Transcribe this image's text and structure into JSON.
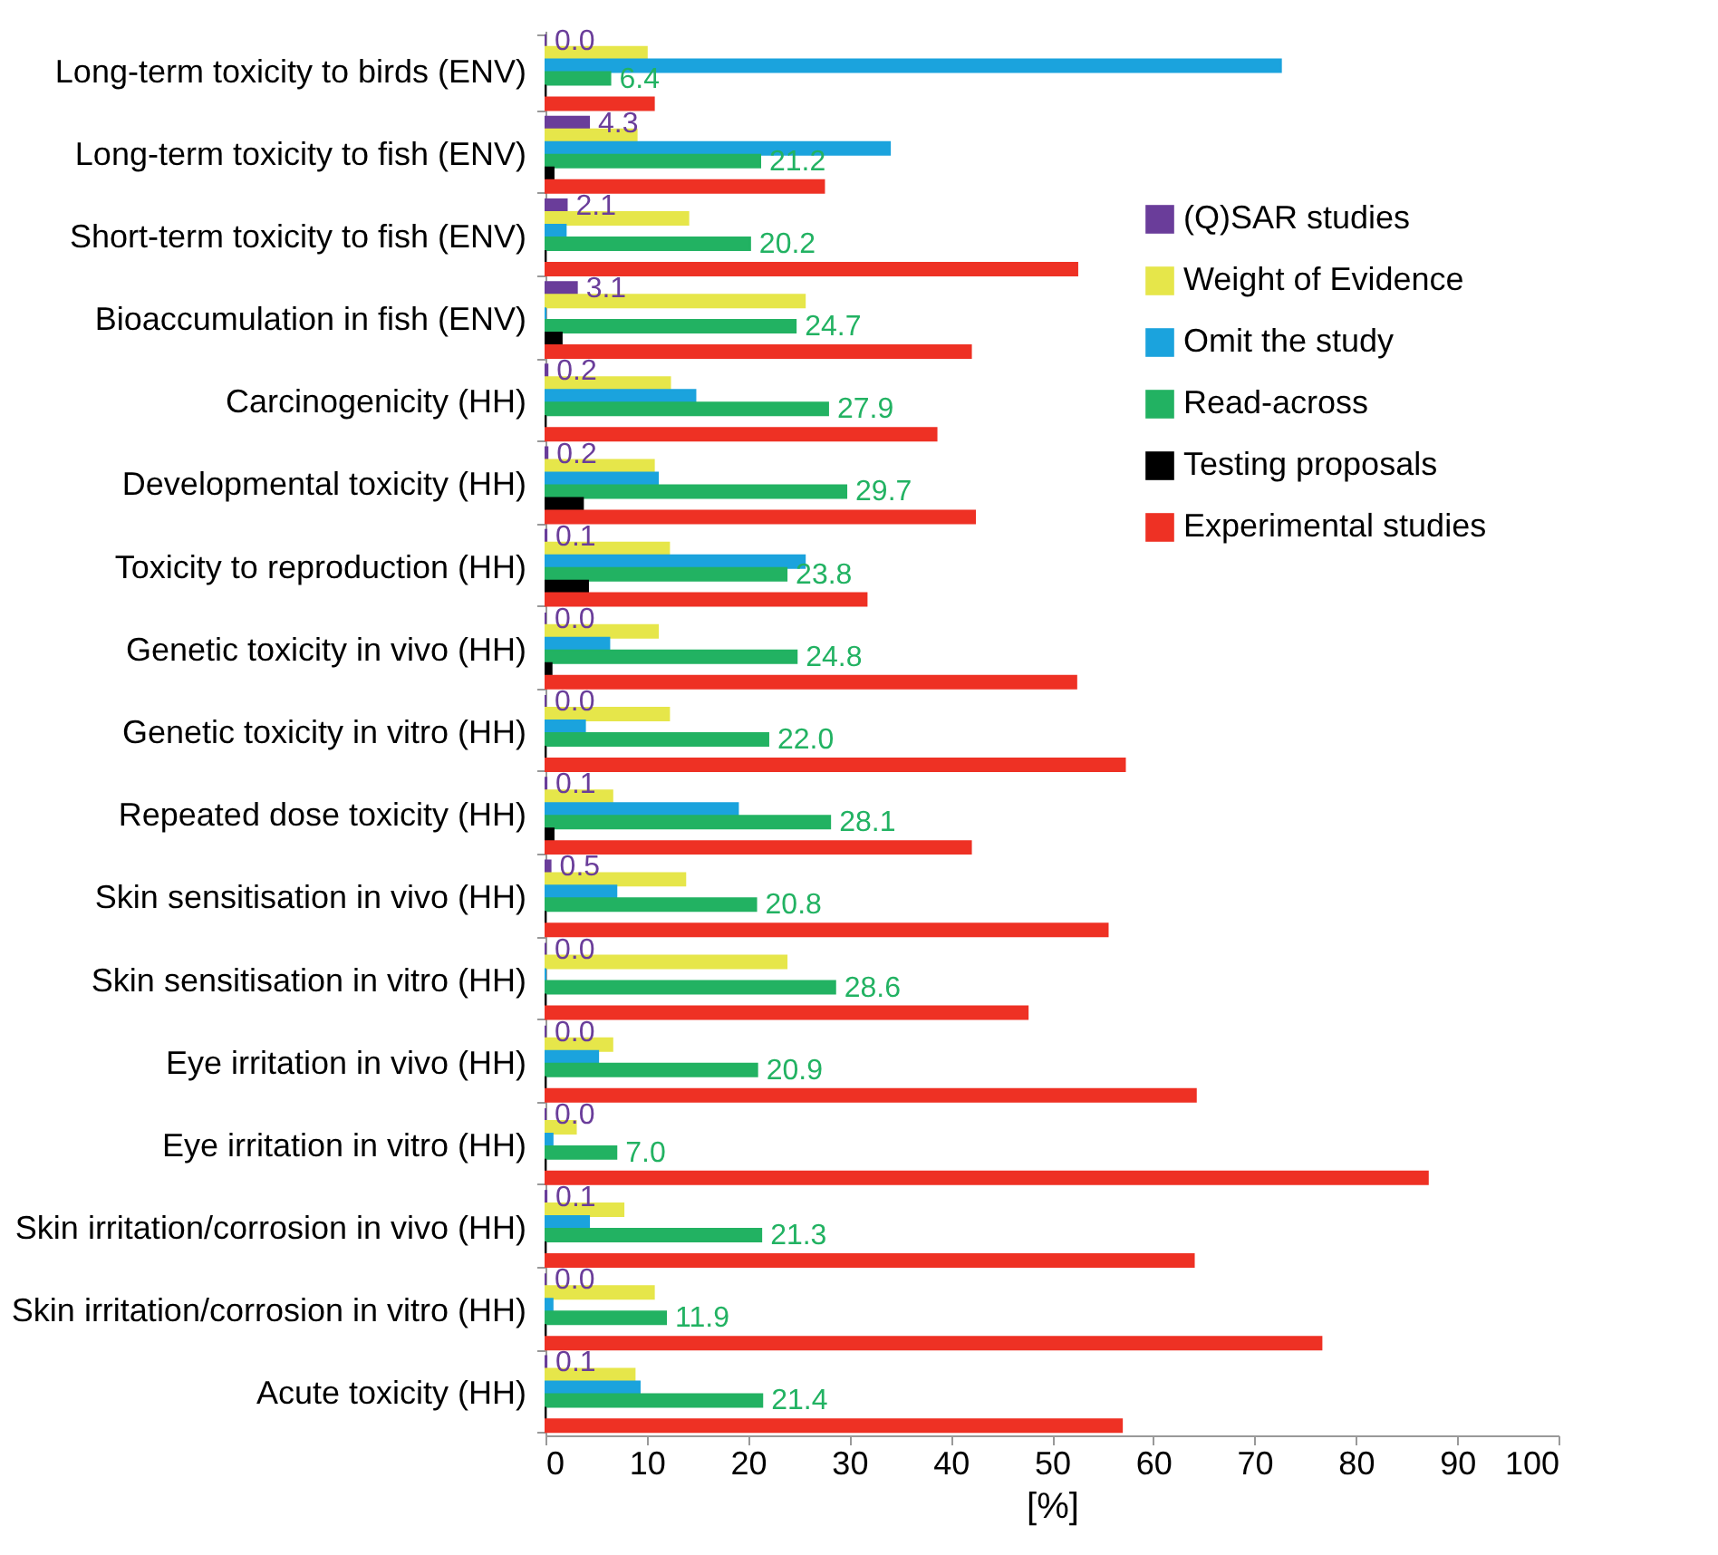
{
  "chart_data": {
    "type": "bar",
    "orientation": "horizontal",
    "xlabel": "[%]",
    "categories": [
      "Long-term toxicity to birds (ENV)",
      "Long-term toxicity to fish (ENV)",
      "Short-term toxicity to fish (ENV)",
      "Bioaccumulation in fish (ENV)",
      "Carcinogenicity (HH)",
      "Developmental toxicity (HH)",
      "Toxicity to reproduction (HH)",
      "Genetic toxicity in vivo (HH)",
      "Genetic toxicity in vitro (HH)",
      "Repeated dose toxicity (HH)",
      "Skin sensitisation in vivo (HH)",
      "Skin sensitisation in vitro (HH)",
      "Eye irritation in vivo (HH)",
      "Eye irritation in vitro (HH)",
      "Skin irritation/corrosion in vivo (HH)",
      "Skin irritation/corrosion in vitro (HH)",
      "Acute toxicity (HH)"
    ],
    "series": [
      {
        "name": "(Q)SAR studies",
        "color": "#6a3d9a",
        "values": [
          0.0,
          4.3,
          2.1,
          3.1,
          0.2,
          0.2,
          0.1,
          0.0,
          0.0,
          0.1,
          0.5,
          0.0,
          0.0,
          0.0,
          0.1,
          0.0,
          0.1
        ],
        "value_labels": [
          "0.0",
          "4.3",
          "2.1",
          "3.1",
          "0.2",
          "0.2",
          "0.1",
          "0.0",
          "0.0",
          "0.1",
          "0.5",
          "0.0",
          "0.0",
          "0.0",
          "0.1",
          "0.0",
          "0.1"
        ]
      },
      {
        "name": "Weight of Evidence",
        "color": "#e6e64a",
        "values": [
          10.0,
          9.0,
          14.1,
          25.6,
          12.3,
          10.7,
          12.2,
          11.1,
          12.2,
          6.6,
          13.8,
          23.8,
          6.6,
          3.0,
          7.7,
          10.7,
          8.8
        ]
      },
      {
        "name": "Omit the study",
        "color": "#1ba3dd",
        "values": [
          72.6,
          34.0,
          2.0,
          0,
          14.8,
          11.1,
          25.6,
          6.3,
          3.9,
          19.0,
          7.0,
          0,
          5.2,
          0.7,
          4.3,
          0.7,
          9.3
        ]
      },
      {
        "name": "Read-across",
        "color": "#22b262",
        "values": [
          6.4,
          21.2,
          20.2,
          24.7,
          27.9,
          29.7,
          23.8,
          24.8,
          22.0,
          28.1,
          20.8,
          28.6,
          20.9,
          7.0,
          21.3,
          11.9,
          21.4
        ],
        "value_labels": [
          "6.4",
          "21.2",
          "20.2",
          "24.7",
          "27.9",
          "29.7",
          "23.8",
          "24.8",
          "22.0",
          "28.1",
          "20.8",
          "28.6",
          "20.9",
          "7.0",
          "21.3",
          "11.9",
          "21.4"
        ]
      },
      {
        "name": "Testing proposals",
        "color": "#000000",
        "values": [
          0,
          0.8,
          0,
          1.6,
          0,
          3.7,
          4.2,
          0.6,
          0,
          0.8,
          0,
          0,
          0,
          0,
          0,
          0,
          0
        ]
      },
      {
        "name": "Experimental studies",
        "color": "#ee3124",
        "values": [
          10.7,
          27.5,
          52.5,
          42.0,
          38.6,
          42.4,
          31.7,
          52.4,
          57.2,
          42.0,
          55.5,
          47.6,
          64.2,
          87.1,
          64.0,
          76.6,
          56.9
        ]
      }
    ],
    "xlim": [
      0,
      100
    ],
    "xticks": [
      0,
      10,
      20,
      30,
      40,
      50,
      60,
      70,
      80,
      90,
      100
    ],
    "legend": "right"
  }
}
